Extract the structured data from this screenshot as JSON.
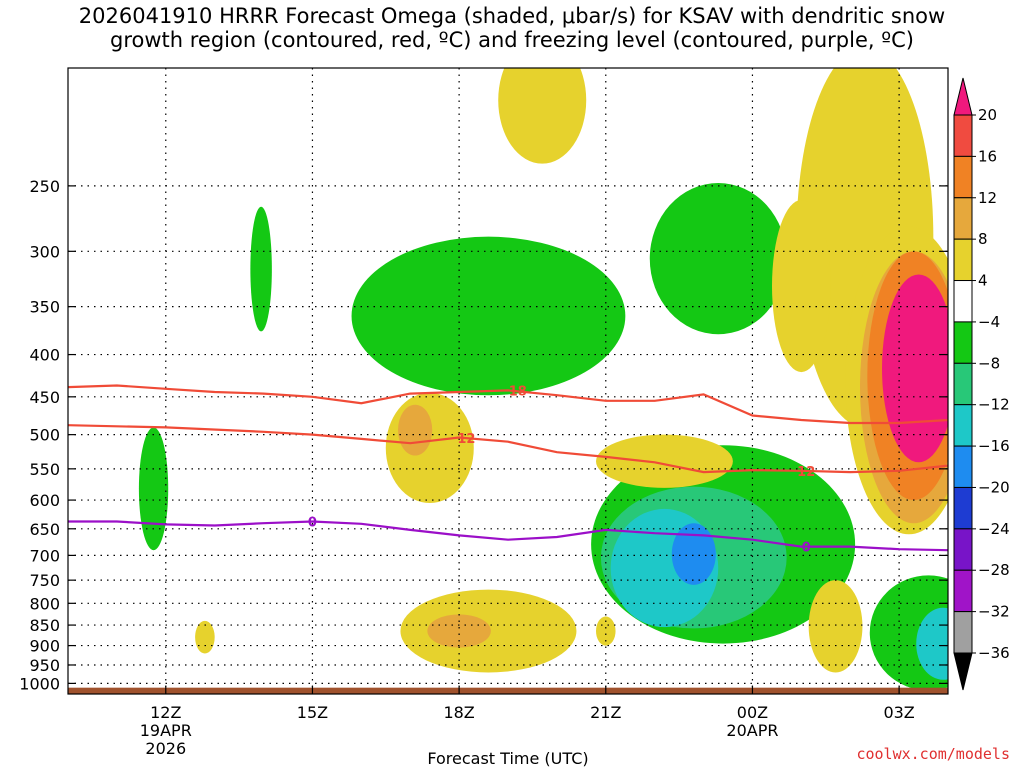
{
  "title_line1": "2026041910 HRRR Forecast Omega (shaded, μbar/s) for KSAV with dendritic snow",
  "title_line2": "growth region (contoured, red, ºC) and freezing level (contoured, purple, ºC)",
  "xlabel": "Forecast Time (UTC)",
  "watermark": "coolwx.com/models",
  "chart_data": {
    "type": "time-height cross section",
    "y_scale": "log-pressure",
    "ylim": [
      1030,
      180
    ],
    "y_ticks": [
      {
        "value": 250,
        "label": "250"
      },
      {
        "value": 300,
        "label": "300"
      },
      {
        "value": 350,
        "label": "350"
      },
      {
        "value": 400,
        "label": "400"
      },
      {
        "value": 450,
        "label": "450"
      },
      {
        "value": 500,
        "label": "500"
      },
      {
        "value": 550,
        "label": "550"
      },
      {
        "value": 600,
        "label": "600"
      },
      {
        "value": 650,
        "label": "650"
      },
      {
        "value": 700,
        "label": "700"
      },
      {
        "value": 750,
        "label": "750"
      },
      {
        "value": 800,
        "label": "800"
      },
      {
        "value": 850,
        "label": "850"
      },
      {
        "value": 900,
        "label": "900"
      },
      {
        "value": 950,
        "label": "950"
      },
      {
        "value": 1000,
        "label": "1000"
      }
    ],
    "x_ticks": [
      {
        "hour": 2,
        "lines": [
          "12Z",
          "19APR",
          "2026"
        ]
      },
      {
        "hour": 5,
        "lines": [
          "15Z"
        ]
      },
      {
        "hour": 8,
        "lines": [
          "18Z"
        ]
      },
      {
        "hour": 11,
        "lines": [
          "21Z"
        ]
      },
      {
        "hour": 14,
        "lines": [
          "00Z",
          "20APR"
        ]
      },
      {
        "hour": 17,
        "lines": [
          "03Z"
        ]
      }
    ],
    "x_range_hours": [
      0,
      18
    ],
    "grid": true,
    "colorbar": {
      "levels": [
        20,
        16,
        12,
        8,
        4,
        -4,
        -8,
        -12,
        -16,
        -20,
        -24,
        -28,
        -32,
        -36
      ],
      "colors": [
        "#f0197d",
        "#f04b40",
        "#f08224",
        "#e6a83c",
        "#e6d22d",
        "#ffffff",
        "#14c814",
        "#28c878",
        "#1ec8c8",
        "#1e8cf0",
        "#1e3cd2",
        "#7814c8",
        "#a014c8",
        "#a0a0a0",
        "#000000"
      ]
    },
    "ground_color": "#a0522d",
    "contours": [
      {
        "name": "-18",
        "color": "#f04b37",
        "label": "18",
        "points": [
          [
            0,
            438
          ],
          [
            1,
            436
          ],
          [
            2,
            440
          ],
          [
            3,
            444
          ],
          [
            4,
            446
          ],
          [
            5,
            450
          ],
          [
            6,
            458
          ],
          [
            7,
            446
          ],
          [
            8,
            444
          ],
          [
            9,
            442
          ],
          [
            10,
            448
          ],
          [
            11,
            455
          ],
          [
            12,
            455
          ],
          [
            13,
            447
          ],
          [
            14,
            474
          ],
          [
            15,
            480
          ],
          [
            16,
            484
          ],
          [
            17,
            484
          ],
          [
            18,
            480
          ]
        ]
      },
      {
        "name": "-12",
        "color": "#f04b37",
        "label": "12",
        "points": [
          [
            0,
            487
          ],
          [
            2,
            490
          ],
          [
            4,
            496
          ],
          [
            5,
            500
          ],
          [
            6,
            506
          ],
          [
            7,
            512
          ],
          [
            8,
            504
          ],
          [
            9,
            510
          ],
          [
            10,
            525
          ],
          [
            11,
            532
          ],
          [
            12,
            540
          ],
          [
            13,
            555
          ],
          [
            14,
            552
          ],
          [
            15,
            553
          ],
          [
            16,
            555
          ],
          [
            17,
            553
          ],
          [
            18,
            545
          ]
        ]
      },
      {
        "name": "0",
        "color": "#9b0fc8",
        "label": "0",
        "points": [
          [
            0,
            637
          ],
          [
            1,
            637
          ],
          [
            2,
            642
          ],
          [
            3,
            644
          ],
          [
            4,
            640
          ],
          [
            5,
            637
          ],
          [
            6,
            641
          ],
          [
            7,
            652
          ],
          [
            8,
            662
          ],
          [
            9,
            670
          ],
          [
            10,
            665
          ],
          [
            11,
            652
          ],
          [
            12,
            658
          ],
          [
            13,
            662
          ],
          [
            14,
            670
          ],
          [
            15,
            683
          ],
          [
            16,
            683
          ],
          [
            17,
            688
          ],
          [
            18,
            690
          ]
        ]
      }
    ],
    "contour_labels": [
      {
        "contour": "-18",
        "hour": 9.2,
        "value": 442
      },
      {
        "contour": "-12",
        "hour": 8.15,
        "value": 505
      },
      {
        "contour": "-12",
        "hour": 15.1,
        "value": 553
      },
      {
        "contour": "0",
        "hour": 5.0,
        "value": 637
      },
      {
        "contour": "0",
        "hour": 15.1,
        "value": 683
      }
    ],
    "regions": [
      {
        "name": "upward-green-350",
        "level": -4,
        "cx": 8.6,
        "cy": 368,
        "rx": 2.8,
        "ry": 80
      },
      {
        "name": "upward-green-300",
        "level": -4,
        "cx": 13.3,
        "cy": 313,
        "rx": 1.4,
        "ry": 65
      },
      {
        "name": "upward-green-700",
        "level": -4,
        "cx": 13.4,
        "cy": 705,
        "rx": 2.7,
        "ry": 190
      },
      {
        "name": "upward-teal-700",
        "level": -8,
        "cx": 12.8,
        "cy": 718,
        "rx": 1.9,
        "ry": 140
      },
      {
        "name": "upward-cyan-700",
        "level": -12,
        "cx": 12.2,
        "cy": 735,
        "rx": 1.1,
        "ry": 120
      },
      {
        "name": "upward-blue-700",
        "level": -16,
        "cx": 12.8,
        "cy": 700,
        "rx": 0.45,
        "ry": 60
      },
      {
        "name": "upward-green-600",
        "level": -4,
        "cx": 1.75,
        "cy": 590,
        "rx": 0.3,
        "ry": 100
      },
      {
        "name": "upward-green-300b",
        "level": -4,
        "cx": 3.95,
        "cy": 320,
        "rx": 0.22,
        "ry": 55
      },
      {
        "name": "upward-green-900",
        "level": -4,
        "cx": 17.6,
        "cy": 880,
        "rx": 1.2,
        "ry": 140
      },
      {
        "name": "upward-teal-900",
        "level": -12,
        "cx": 17.9,
        "cy": 900,
        "rx": 0.55,
        "ry": 90
      },
      {
        "name": "downward-yellow-250",
        "level": 4,
        "cx": 16.3,
        "cy": 330,
        "rx": 1.4,
        "ry": 160
      },
      {
        "name": "downward-yellow-500",
        "level": 4,
        "cx": 17.2,
        "cy": 470,
        "rx": 1.3,
        "ry": 190
      },
      {
        "name": "downward-orange-400",
        "level": 8,
        "cx": 17.3,
        "cy": 470,
        "rx": 1.1,
        "ry": 170
      },
      {
        "name": "downward-dkorange-400",
        "level": 12,
        "cx": 17.3,
        "cy": 450,
        "rx": 0.95,
        "ry": 150
      },
      {
        "name": "downward-pink-400",
        "level": 20,
        "cx": 17.4,
        "cy": 430,
        "rx": 0.75,
        "ry": 110
      },
      {
        "name": "downward-yellow-850",
        "level": 4,
        "cx": 8.6,
        "cy": 870,
        "rx": 1.8,
        "ry": 100
      },
      {
        "name": "downward-orange-850",
        "level": 8,
        "cx": 8.0,
        "cy": 865,
        "rx": 0.65,
        "ry": 40
      },
      {
        "name": "downward-yellow-500b",
        "level": 4,
        "cx": 7.4,
        "cy": 525,
        "rx": 0.9,
        "ry": 80
      },
      {
        "name": "downward-orange-500",
        "level": 8,
        "cx": 7.1,
        "cy": 495,
        "rx": 0.35,
        "ry": 35
      },
      {
        "name": "downward-yellow-550",
        "level": 4,
        "cx": 12.2,
        "cy": 540,
        "rx": 1.4,
        "ry": 40
      },
      {
        "name": "downward-yellow-200",
        "level": 4,
        "cx": 9.7,
        "cy": 200,
        "rx": 0.9,
        "ry": 35
      },
      {
        "name": "downward-yellow-350",
        "level": 4,
        "cx": 15.0,
        "cy": 340,
        "rx": 0.6,
        "ry": 80
      },
      {
        "name": "downward-yellow-850b",
        "level": 4,
        "cx": 15.7,
        "cy": 860,
        "rx": 0.55,
        "ry": 110
      },
      {
        "name": "downward-yellow-880",
        "level": 4,
        "cx": 2.8,
        "cy": 880,
        "rx": 0.2,
        "ry": 40
      },
      {
        "name": "downward-yellow-860",
        "level": 4,
        "cx": 11.0,
        "cy": 865,
        "rx": 0.2,
        "ry": 35
      }
    ]
  }
}
